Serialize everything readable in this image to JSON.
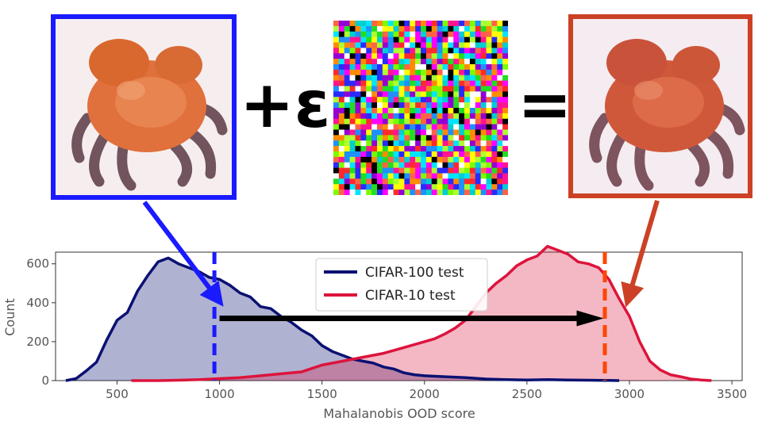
{
  "operators": {
    "plus_epsilon": "+ε",
    "equals": "="
  },
  "images": [
    {
      "label": "",
      "subject": "crab",
      "frame_color": "#1a1aff"
    },
    {
      "label": "",
      "subject": "random-noise"
    },
    {
      "label": "",
      "subject": "crab",
      "frame_color": "#cc4125"
    }
  ],
  "chart_data": {
    "type": "area",
    "xlabel": "Mahalanobis OOD score",
    "ylabel": "Count",
    "xlim": [
      200,
      3550
    ],
    "ylim": [
      0,
      660
    ],
    "xticks": [
      500,
      1000,
      1500,
      2000,
      2500,
      3000,
      3500
    ],
    "yticks": [
      0,
      200,
      400,
      600
    ],
    "grid": false,
    "legend_position": "top-center",
    "series": [
      {
        "name": "CIFAR-100 test",
        "color": "#0a1172",
        "x": [
          250,
          300,
          350,
          400,
          450,
          500,
          550,
          600,
          650,
          700,
          750,
          800,
          850,
          900,
          950,
          1000,
          1050,
          1100,
          1150,
          1200,
          1250,
          1300,
          1350,
          1400,
          1450,
          1500,
          1550,
          1600,
          1650,
          1700,
          1750,
          1800,
          1850,
          1900,
          1950,
          2000,
          2100,
          2200,
          2300,
          2400,
          2500,
          2600,
          2700,
          2800,
          2900,
          2950
        ],
        "y": [
          0,
          10,
          50,
          95,
          210,
          310,
          350,
          460,
          540,
          610,
          630,
          600,
          580,
          560,
          530,
          520,
          490,
          450,
          430,
          380,
          370,
          330,
          300,
          260,
          230,
          180,
          150,
          130,
          110,
          100,
          90,
          70,
          60,
          40,
          30,
          25,
          20,
          15,
          8,
          5,
          3,
          5,
          3,
          2,
          1,
          0
        ]
      },
      {
        "name": "CIFAR-10 test",
        "color": "#dc143c",
        "x": [
          570,
          700,
          800,
          900,
          1000,
          1100,
          1200,
          1300,
          1400,
          1500,
          1600,
          1700,
          1800,
          1900,
          2000,
          2050,
          2100,
          2150,
          2200,
          2250,
          2300,
          2350,
          2400,
          2450,
          2500,
          2550,
          2600,
          2650,
          2700,
          2750,
          2800,
          2850,
          2900,
          2950,
          3000,
          3050,
          3100,
          3150,
          3200,
          3250,
          3300,
          3350,
          3400
        ],
        "y": [
          0,
          0,
          2,
          5,
          10,
          15,
          25,
          35,
          45,
          80,
          100,
          120,
          140,
          170,
          200,
          215,
          240,
          270,
          310,
          380,
          450,
          500,
          540,
          590,
          620,
          640,
          690,
          670,
          650,
          610,
          600,
          580,
          520,
          420,
          330,
          200,
          100,
          55,
          30,
          20,
          8,
          3,
          0
        ]
      }
    ],
    "annotations": {
      "clean_mean_x": 975,
      "perturbed_mean_x": 2880,
      "shift_arrow_x": [
        1000,
        2820
      ],
      "shift_arrow_y": 320,
      "clean_mean_color": "#1a1aff",
      "perturbed_mean_color": "#ff4500",
      "shift_arrow_color": "#000000"
    }
  }
}
